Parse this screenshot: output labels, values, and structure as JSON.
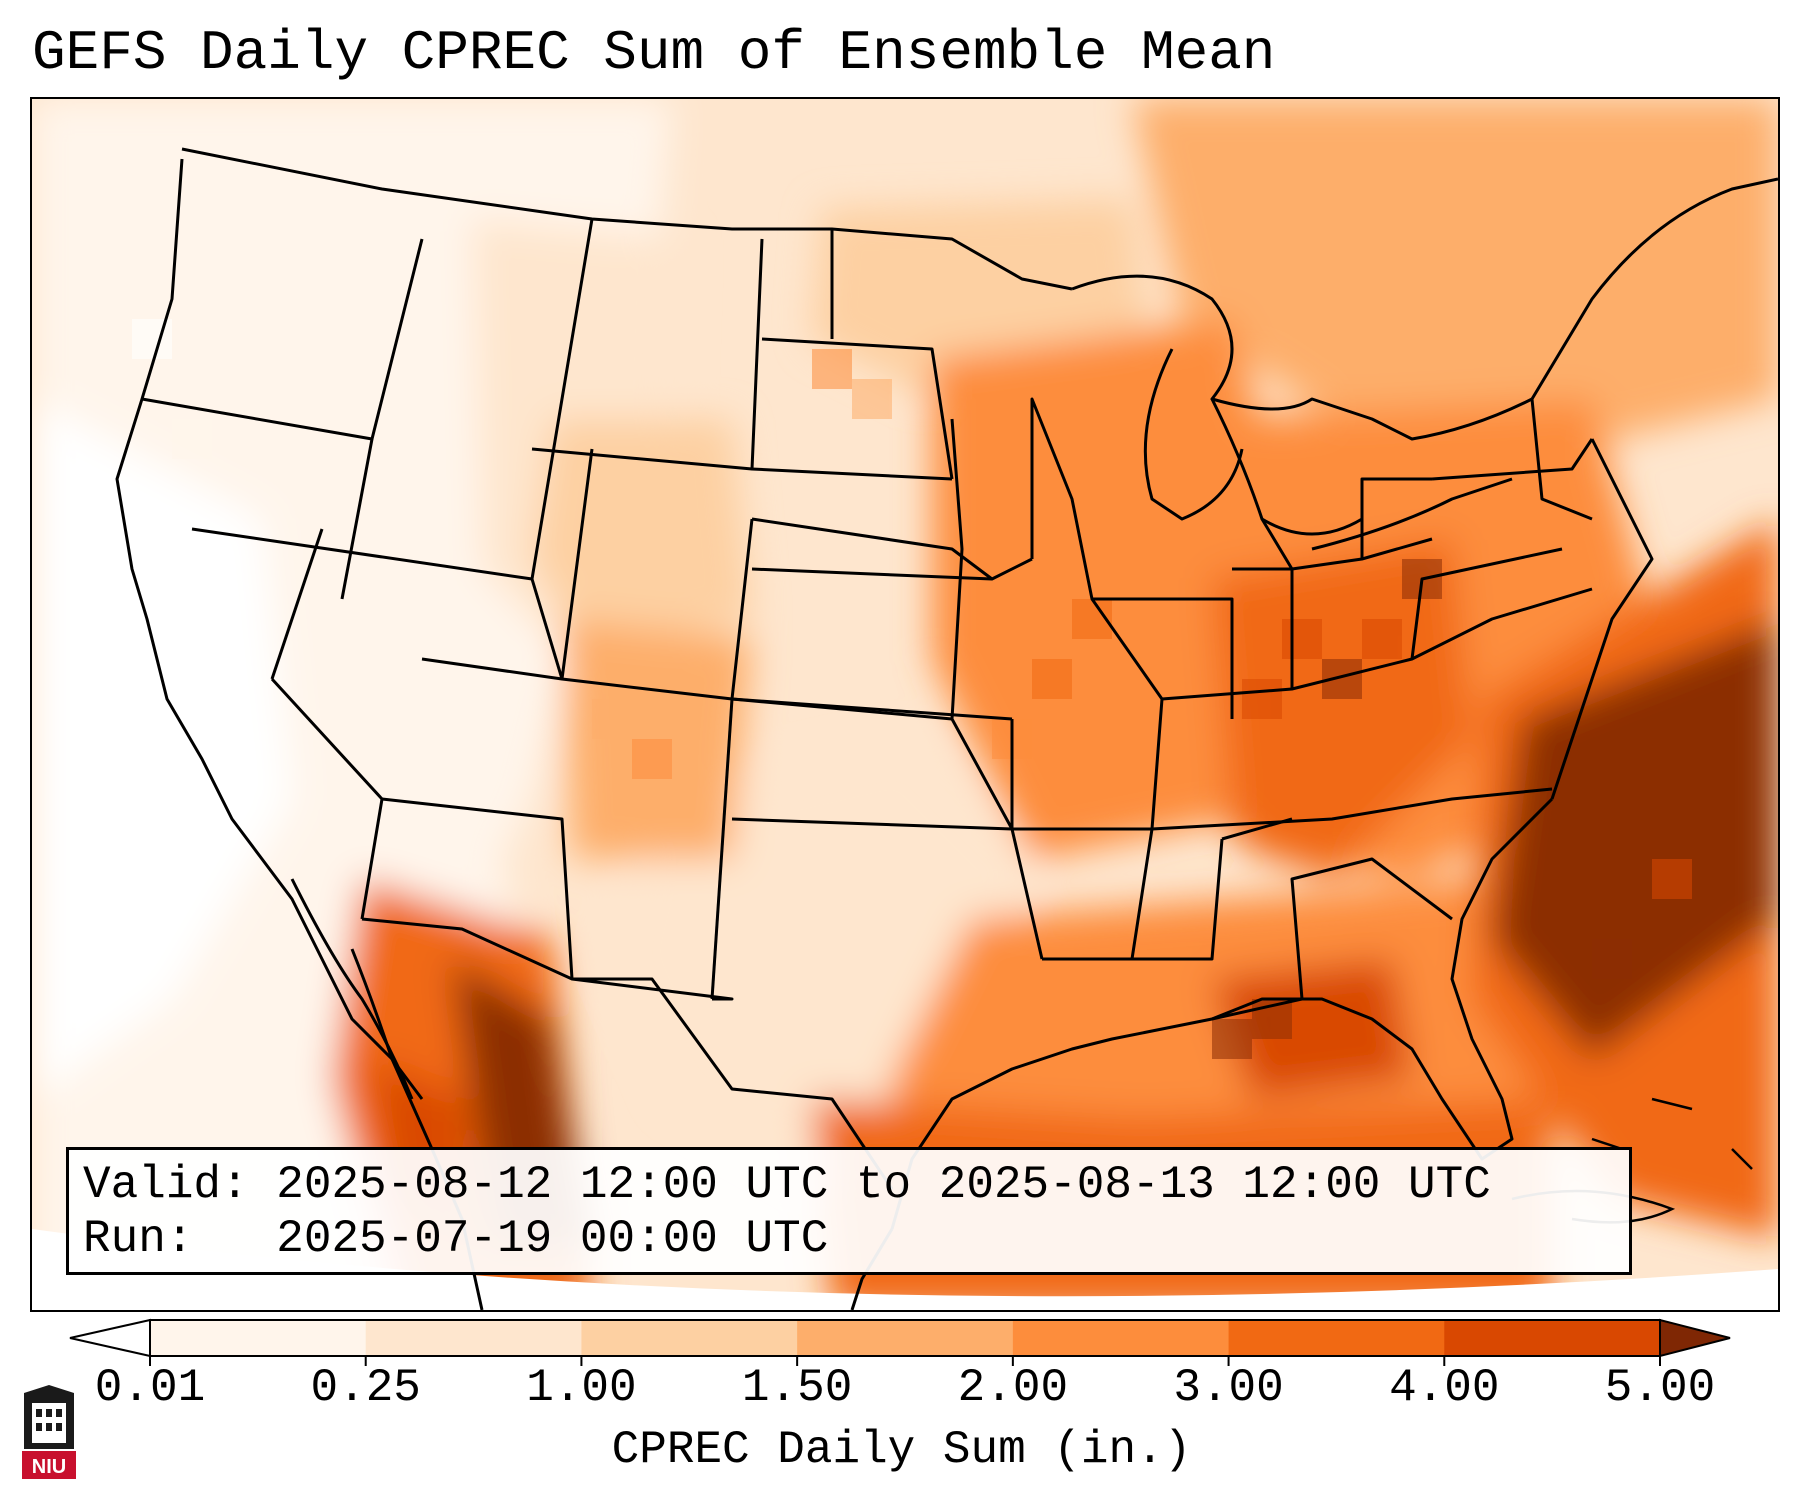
{
  "title": "GEFS Daily CPREC Sum of Ensemble Mean",
  "info": {
    "valid_line": "Valid: 2025-08-12 12:00 UTC to 2025-08-13 12:00 UTC",
    "run_line": "Run:   2025-07-19 00:00 UTC"
  },
  "colorbar": {
    "label": "CPREC Daily Sum (in.)",
    "ticks": [
      "0.01",
      "0.25",
      "1.00",
      "1.50",
      "2.00",
      "3.00",
      "4.00",
      "5.00"
    ],
    "colors": [
      "#fff5eb",
      "#fee6ce",
      "#fdd0a2",
      "#fdae6b",
      "#fd8d3c",
      "#f16913",
      "#d94801",
      "#8c2d04"
    ],
    "under_color": "#ffffff",
    "over_color": "#7f2704"
  },
  "logo": {
    "text": "NIU"
  }
}
